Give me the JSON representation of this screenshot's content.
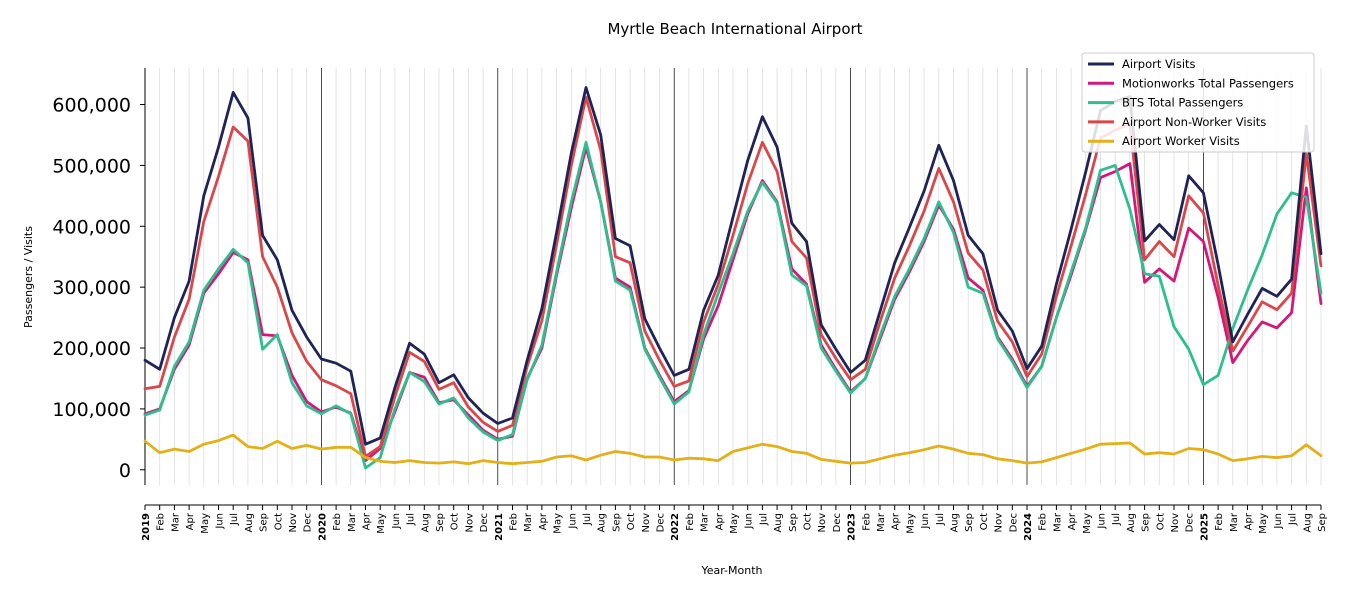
{
  "chart_data": {
    "type": "line",
    "title": "Myrtle Beach International Airport",
    "xlabel": "Year-Month",
    "ylabel": "Passengers / Visits",
    "ylim": [
      -25000,
      660000
    ],
    "yticks": [
      0,
      100000,
      200000,
      300000,
      400000,
      500000,
      600000
    ],
    "ytick_labels": [
      "0",
      "100,000",
      "200,000",
      "300,000",
      "400,000",
      "500,000",
      "600,000"
    ],
    "legend_position": "top-right",
    "grid": "vertical monthly gridlines; darker line at each January",
    "start": "2019-01",
    "end": "2025-09",
    "x": [
      "2019-01",
      "2019-02",
      "2019-03",
      "2019-04",
      "2019-05",
      "2019-06",
      "2019-07",
      "2019-08",
      "2019-09",
      "2019-10",
      "2019-11",
      "2019-12",
      "2020-01",
      "2020-02",
      "2020-03",
      "2020-04",
      "2020-05",
      "2020-06",
      "2020-07",
      "2020-08",
      "2020-09",
      "2020-10",
      "2020-11",
      "2020-12",
      "2021-01",
      "2021-02",
      "2021-03",
      "2021-04",
      "2021-05",
      "2021-06",
      "2021-07",
      "2021-08",
      "2021-09",
      "2021-10",
      "2021-11",
      "2021-12",
      "2022-01",
      "2022-02",
      "2022-03",
      "2022-04",
      "2022-05",
      "2022-06",
      "2022-07",
      "2022-08",
      "2022-09",
      "2022-10",
      "2022-11",
      "2022-12",
      "2023-01",
      "2023-02",
      "2023-03",
      "2023-04",
      "2023-05",
      "2023-06",
      "2023-07",
      "2023-08",
      "2023-09",
      "2023-10",
      "2023-11",
      "2023-12",
      "2024-01",
      "2024-02",
      "2024-03",
      "2024-04",
      "2024-05",
      "2024-06",
      "2024-07",
      "2024-08",
      "2024-09",
      "2024-10",
      "2024-11",
      "2024-12",
      "2025-01",
      "2025-02",
      "2025-03",
      "2025-04",
      "2025-05",
      "2025-06",
      "2025-07",
      "2025-08",
      "2025-09"
    ],
    "x_tick_labels": [
      "2019",
      "Feb",
      "Mar",
      "Apr",
      "May",
      "Jun",
      "Jul",
      "Aug",
      "Sep",
      "Oct",
      "Nov",
      "Dec",
      "2020",
      "Feb",
      "Mar",
      "Apr",
      "May",
      "Jun",
      "Jul",
      "Aug",
      "Sep",
      "Oct",
      "Nov",
      "Dec",
      "2021",
      "Feb",
      "Mar",
      "Apr",
      "May",
      "Jun",
      "Jul",
      "Aug",
      "Sep",
      "Oct",
      "Nov",
      "Dec",
      "2022",
      "Feb",
      "Mar",
      "Apr",
      "May",
      "Jun",
      "Jul",
      "Aug",
      "Sep",
      "Oct",
      "Nov",
      "Dec",
      "2023",
      "Feb",
      "Mar",
      "Apr",
      "May",
      "Jun",
      "Jul",
      "Aug",
      "Sep",
      "Oct",
      "Nov",
      "Dec",
      "2024",
      "Feb",
      "Mar",
      "Apr",
      "May",
      "Jun",
      "Jul",
      "Aug",
      "Sep",
      "Oct",
      "Nov",
      "Dec",
      "2025",
      "Feb",
      "Mar",
      "Apr",
      "May",
      "Jun",
      "Jul",
      "Aug",
      "Sep"
    ],
    "series": [
      {
        "name": "Airport Visits",
        "color": "#1f2355",
        "values": [
          180000,
          165000,
          250000,
          310000,
          450000,
          530000,
          620000,
          578000,
          385000,
          345000,
          262000,
          218000,
          182000,
          175000,
          162000,
          42000,
          52000,
          135000,
          208000,
          190000,
          143000,
          156000,
          118000,
          93000,
          76000,
          85000,
          180000,
          265000,
          390000,
          520000,
          628000,
          550000,
          380000,
          368000,
          248000,
          200000,
          155000,
          165000,
          262000,
          320000,
          415000,
          508000,
          580000,
          530000,
          405000,
          375000,
          238000,
          198000,
          160000,
          180000,
          260000,
          340000,
          398000,
          458000,
          533000,
          475000,
          385000,
          355000,
          262000,
          228000,
          166000,
          203000,
          305000,
          395000,
          490000,
          590000,
          605000,
          613000,
          376000,
          403000,
          378000,
          483000,
          455000,
          337000,
          210000,
          255000,
          298000,
          285000,
          313000,
          565000,
          355000
        ]
      },
      {
        "name": "Motionworks Total Passengers",
        "color": "#d4177a",
        "values": [
          92000,
          100000,
          165000,
          205000,
          290000,
          322000,
          357000,
          345000,
          222000,
          220000,
          155000,
          112000,
          95000,
          103000,
          93000,
          15000,
          35000,
          95000,
          160000,
          152000,
          110000,
          115000,
          90000,
          65000,
          50000,
          55000,
          150000,
          200000,
          320000,
          430000,
          530000,
          440000,
          315000,
          300000,
          200000,
          155000,
          112000,
          130000,
          215000,
          270000,
          345000,
          420000,
          475000,
          440000,
          330000,
          305000,
          205000,
          165000,
          128000,
          150000,
          215000,
          280000,
          325000,
          375000,
          435000,
          395000,
          315000,
          295000,
          218000,
          182000,
          137000,
          170000,
          250000,
          320000,
          395000,
          480000,
          490000,
          503000,
          308000,
          330000,
          310000,
          397000,
          375000,
          283000,
          176000,
          212000,
          243000,
          233000,
          258000,
          463000,
          273000
        ]
      },
      {
        "name": "BTS Total Passengers",
        "color": "#2ebf8e",
        "values": [
          90000,
          98000,
          170000,
          210000,
          295000,
          330000,
          362000,
          340000,
          198000,
          222000,
          143000,
          105000,
          92000,
          105000,
          92000,
          3000,
          20000,
          100000,
          160000,
          145000,
          108000,
          118000,
          85000,
          62000,
          48000,
          58000,
          148000,
          205000,
          325000,
          440000,
          538000,
          440000,
          310000,
          295000,
          198000,
          152000,
          108000,
          128000,
          222000,
          290000,
          355000,
          425000,
          472000,
          438000,
          320000,
          302000,
          200000,
          162000,
          126000,
          150000,
          220000,
          285000,
          330000,
          380000,
          440000,
          390000,
          300000,
          290000,
          215000,
          178000,
          135000,
          170000,
          250000,
          325000,
          398000,
          492000,
          500000,
          428000,
          322000,
          318000,
          235000,
          198000,
          140000,
          155000,
          232000,
          295000,
          353000,
          420000,
          455000,
          448000,
          290000
        ]
      },
      {
        "name": "Airport Non-Worker Visits",
        "color": "#d9474b",
        "values": [
          133000,
          137000,
          218000,
          280000,
          408000,
          482000,
          563000,
          540000,
          350000,
          300000,
          225000,
          178000,
          148000,
          138000,
          125000,
          22000,
          38000,
          120000,
          193000,
          178000,
          132000,
          143000,
          103000,
          78000,
          63000,
          73000,
          170000,
          245000,
          370000,
          500000,
          612000,
          525000,
          350000,
          340000,
          228000,
          180000,
          137000,
          146000,
          243000,
          305000,
          385000,
          470000,
          538000,
          490000,
          375000,
          348000,
          222000,
          183000,
          148000,
          165000,
          243000,
          315000,
          368000,
          425000,
          495000,
          440000,
          356000,
          328000,
          244000,
          210000,
          153000,
          190000,
          285000,
          368000,
          453000,
          545000,
          558000,
          568000,
          345000,
          375000,
          350000,
          450000,
          422000,
          303000,
          195000,
          235000,
          276000,
          263000,
          290000,
          520000,
          335000
        ]
      },
      {
        "name": "Airport Worker Visits",
        "color": "#e3b018",
        "values": [
          47000,
          28000,
          34000,
          30000,
          42000,
          48000,
          57000,
          38000,
          35000,
          47000,
          35000,
          40000,
          34000,
          37000,
          37000,
          20000,
          14000,
          12000,
          15000,
          12000,
          11000,
          13000,
          10000,
          15000,
          12000,
          10000,
          12000,
          14000,
          21000,
          23000,
          16000,
          24000,
          30000,
          27000,
          21000,
          21000,
          16000,
          19000,
          18000,
          15000,
          30000,
          36000,
          42000,
          38000,
          30000,
          27000,
          17000,
          14000,
          11000,
          12000,
          18000,
          24000,
          28000,
          33000,
          39000,
          34000,
          27000,
          25000,
          18000,
          15000,
          11000,
          13000,
          20000,
          27000,
          34000,
          42000,
          43000,
          44000,
          26000,
          28000,
          26000,
          35000,
          33000,
          26000,
          15000,
          18000,
          22000,
          20000,
          23000,
          41000,
          23000
        ]
      }
    ]
  }
}
